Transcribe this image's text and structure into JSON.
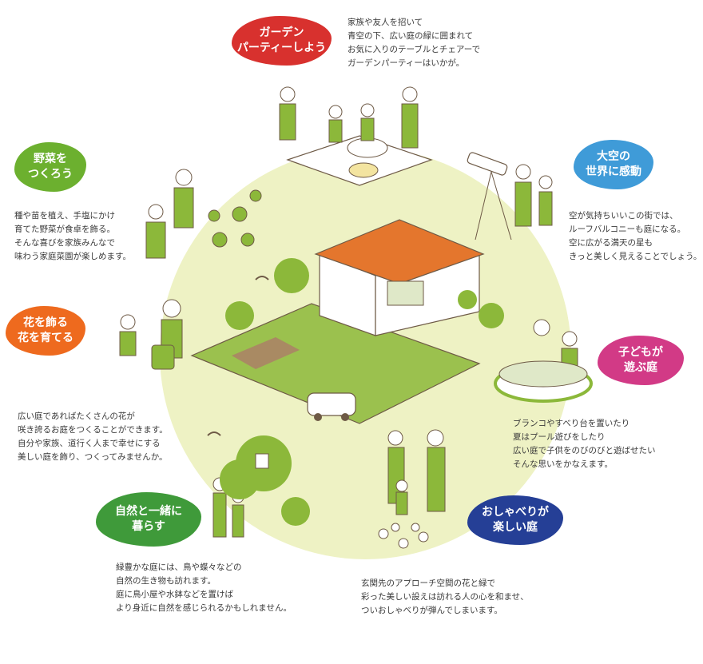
{
  "topics": {
    "garden_party": {
      "title": "ガーデン\nパーティーしよう",
      "text": "家族や友人を招いて\n青空の下、広い庭の緑に囲まれて\nお気に入りのテーブルとチェアーで\nガーデンパーティーはいかが。",
      "color": "#d8312e"
    },
    "vegetables": {
      "title": "野菜を\nつくろう",
      "text": "種や苗を植え、手塩にかけ\n育てた野菜が食卓を飾る。\nそんな喜びを家族みんなで\n味わう家庭菜園が楽しめます。",
      "color": "#6cb02f"
    },
    "sky": {
      "title": "大空の\n世界に感動",
      "text": "空が気持ちいいこの街では、\nルーフバルコニーも庭になる。\n空に広がる満天の星も\nきっと美しく見えることでしょう。",
      "color": "#3f9bd8"
    },
    "flowers": {
      "title": "花を飾る\n花を育てる",
      "text": "広い庭であればたくさんの花が\n咲き誇るお庭をつくることができます。\n自分や家族、道行く人まで幸せにする\n美しい庭を飾り、つくってみませんか。",
      "color": "#ee6a1e"
    },
    "kids": {
      "title": "子どもが\n遊ぶ庭",
      "text": "ブランコやすべり台を置いたり\n夏はプール遊びをしたり\n広い庭で子供をのびのびと遊ばせたい\nそんな思いをかなえます。",
      "color": "#d23a86"
    },
    "nature": {
      "title": "自然と一緒に\n暮らす",
      "text": "緑豊かな庭には、鳥や蝶々などの\n自然の生き物も訪れます。\n庭に鳥小屋や水鉢などを置けば\nより身近に自然を感じられるかもしれません。",
      "color": "#3f9a3a"
    },
    "chatting": {
      "title": "おしゃべりが\n楽しい庭",
      "text": "玄関先のアプローチ空間の花と緑で\n彩った美しい設えは訪れる人の心を和ませ、\nついおしゃべりが弾んでしまいます。",
      "color": "#253f96"
    }
  },
  "illustration": {
    "line_color": "#6e5a46",
    "accent_green": "#8cb83a",
    "roof_color": "#e4762d",
    "lawn_color": "#8cb83a",
    "soil_color": "#a98a63"
  }
}
